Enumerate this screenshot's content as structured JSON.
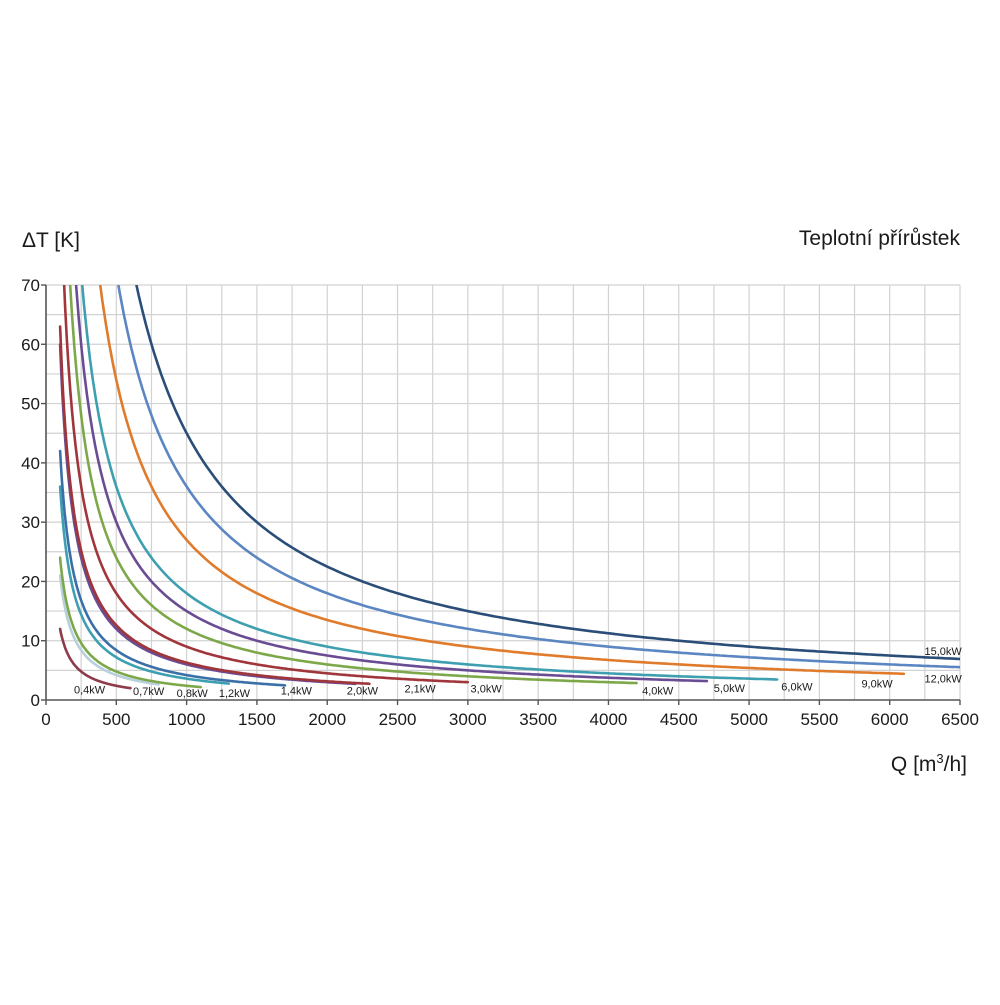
{
  "chart_data": {
    "type": "line",
    "title": "Teplotní přírůstek",
    "ylabel": "ΔT [K]",
    "xlabel_base": "Q [m",
    "xlabel_sup": "3",
    "xlabel_tail": "/h]",
    "xlim": [
      0,
      6500
    ],
    "ylim": [
      0,
      70
    ],
    "x_ticks": [
      0,
      500,
      1000,
      1500,
      2000,
      2500,
      3000,
      3500,
      4000,
      4500,
      5000,
      5500,
      6000,
      6500
    ],
    "y_ticks": [
      0,
      10,
      20,
      30,
      40,
      50,
      60,
      70
    ],
    "grid": true,
    "formula": "dT = P * 3000 / Q",
    "series": [
      {
        "name": "0,4kW",
        "power": 0.4,
        "x_start": 100,
        "x_end": 600,
        "color": "#8e3b4a",
        "label_x": 310,
        "label_y": 1.8
      },
      {
        "name": "0,7kW",
        "power": 0.7,
        "x_start": 100,
        "x_end": 800,
        "color": "#b8d0dc",
        "label_x": 730,
        "label_y": 1.5
      },
      {
        "name": "0,8kW",
        "power": 0.8,
        "x_start": 100,
        "x_end": 1100,
        "color": "#7da84a",
        "label_x": 1040,
        "label_y": 1.2
      },
      {
        "name": "1,2kW",
        "power": 1.2,
        "x_start": 100,
        "x_end": 1300,
        "color": "#3e9fb0",
        "label_x": 1340,
        "label_y": 1.2
      },
      {
        "name": "1,4kW",
        "power": 1.4,
        "x_start": 100,
        "x_end": 1700,
        "color": "#3b6fa8",
        "label_x": 1780,
        "label_y": 1.6
      },
      {
        "name": "2,0kW",
        "power": 2.0,
        "x_start": 100,
        "x_end": 2200,
        "color": "#6a4c93",
        "label_x": 2250,
        "label_y": 1.6
      },
      {
        "name": "2,1kW",
        "power": 2.1,
        "x_start": 100,
        "x_end": 2300,
        "color": "#a0353a",
        "label_x": 2660,
        "label_y": 1.9
      },
      {
        "name": "3,0kW",
        "power": 3.0,
        "x_start": 100,
        "x_end": 3000,
        "color": "#a0353a",
        "label_x": 3130,
        "label_y": 1.9
      },
      {
        "name": "4,0kW",
        "power": 4.0,
        "x_start": 100,
        "x_end": 4200,
        "color": "#7da84a",
        "label_x": 4350,
        "label_y": 1.6
      },
      {
        "name": "5,0kW",
        "power": 5.0,
        "x_start": 100,
        "x_end": 4700,
        "color": "#6a4c93",
        "label_x": 4860,
        "label_y": 2.0
      },
      {
        "name": "6,0kW",
        "power": 6.0,
        "x_start": 100,
        "x_end": 5200,
        "color": "#3e9fb0",
        "label_x": 5340,
        "label_y": 2.3
      },
      {
        "name": "9,0kW",
        "power": 9.0,
        "x_start": 100,
        "x_end": 6100,
        "color": "#e07b2c",
        "label_x": 5910,
        "label_y": 2.8
      },
      {
        "name": "12,0kW",
        "power": 12.0,
        "x_start": 100,
        "x_end": 6500,
        "color": "#5b86c2",
        "label_x": 6380,
        "label_y": 3.6
      },
      {
        "name": "15,0kW",
        "power": 15.0,
        "x_start": 100,
        "x_end": 6500,
        "color": "#2b4e78",
        "label_x": 6380,
        "label_y": 8.3
      }
    ]
  }
}
